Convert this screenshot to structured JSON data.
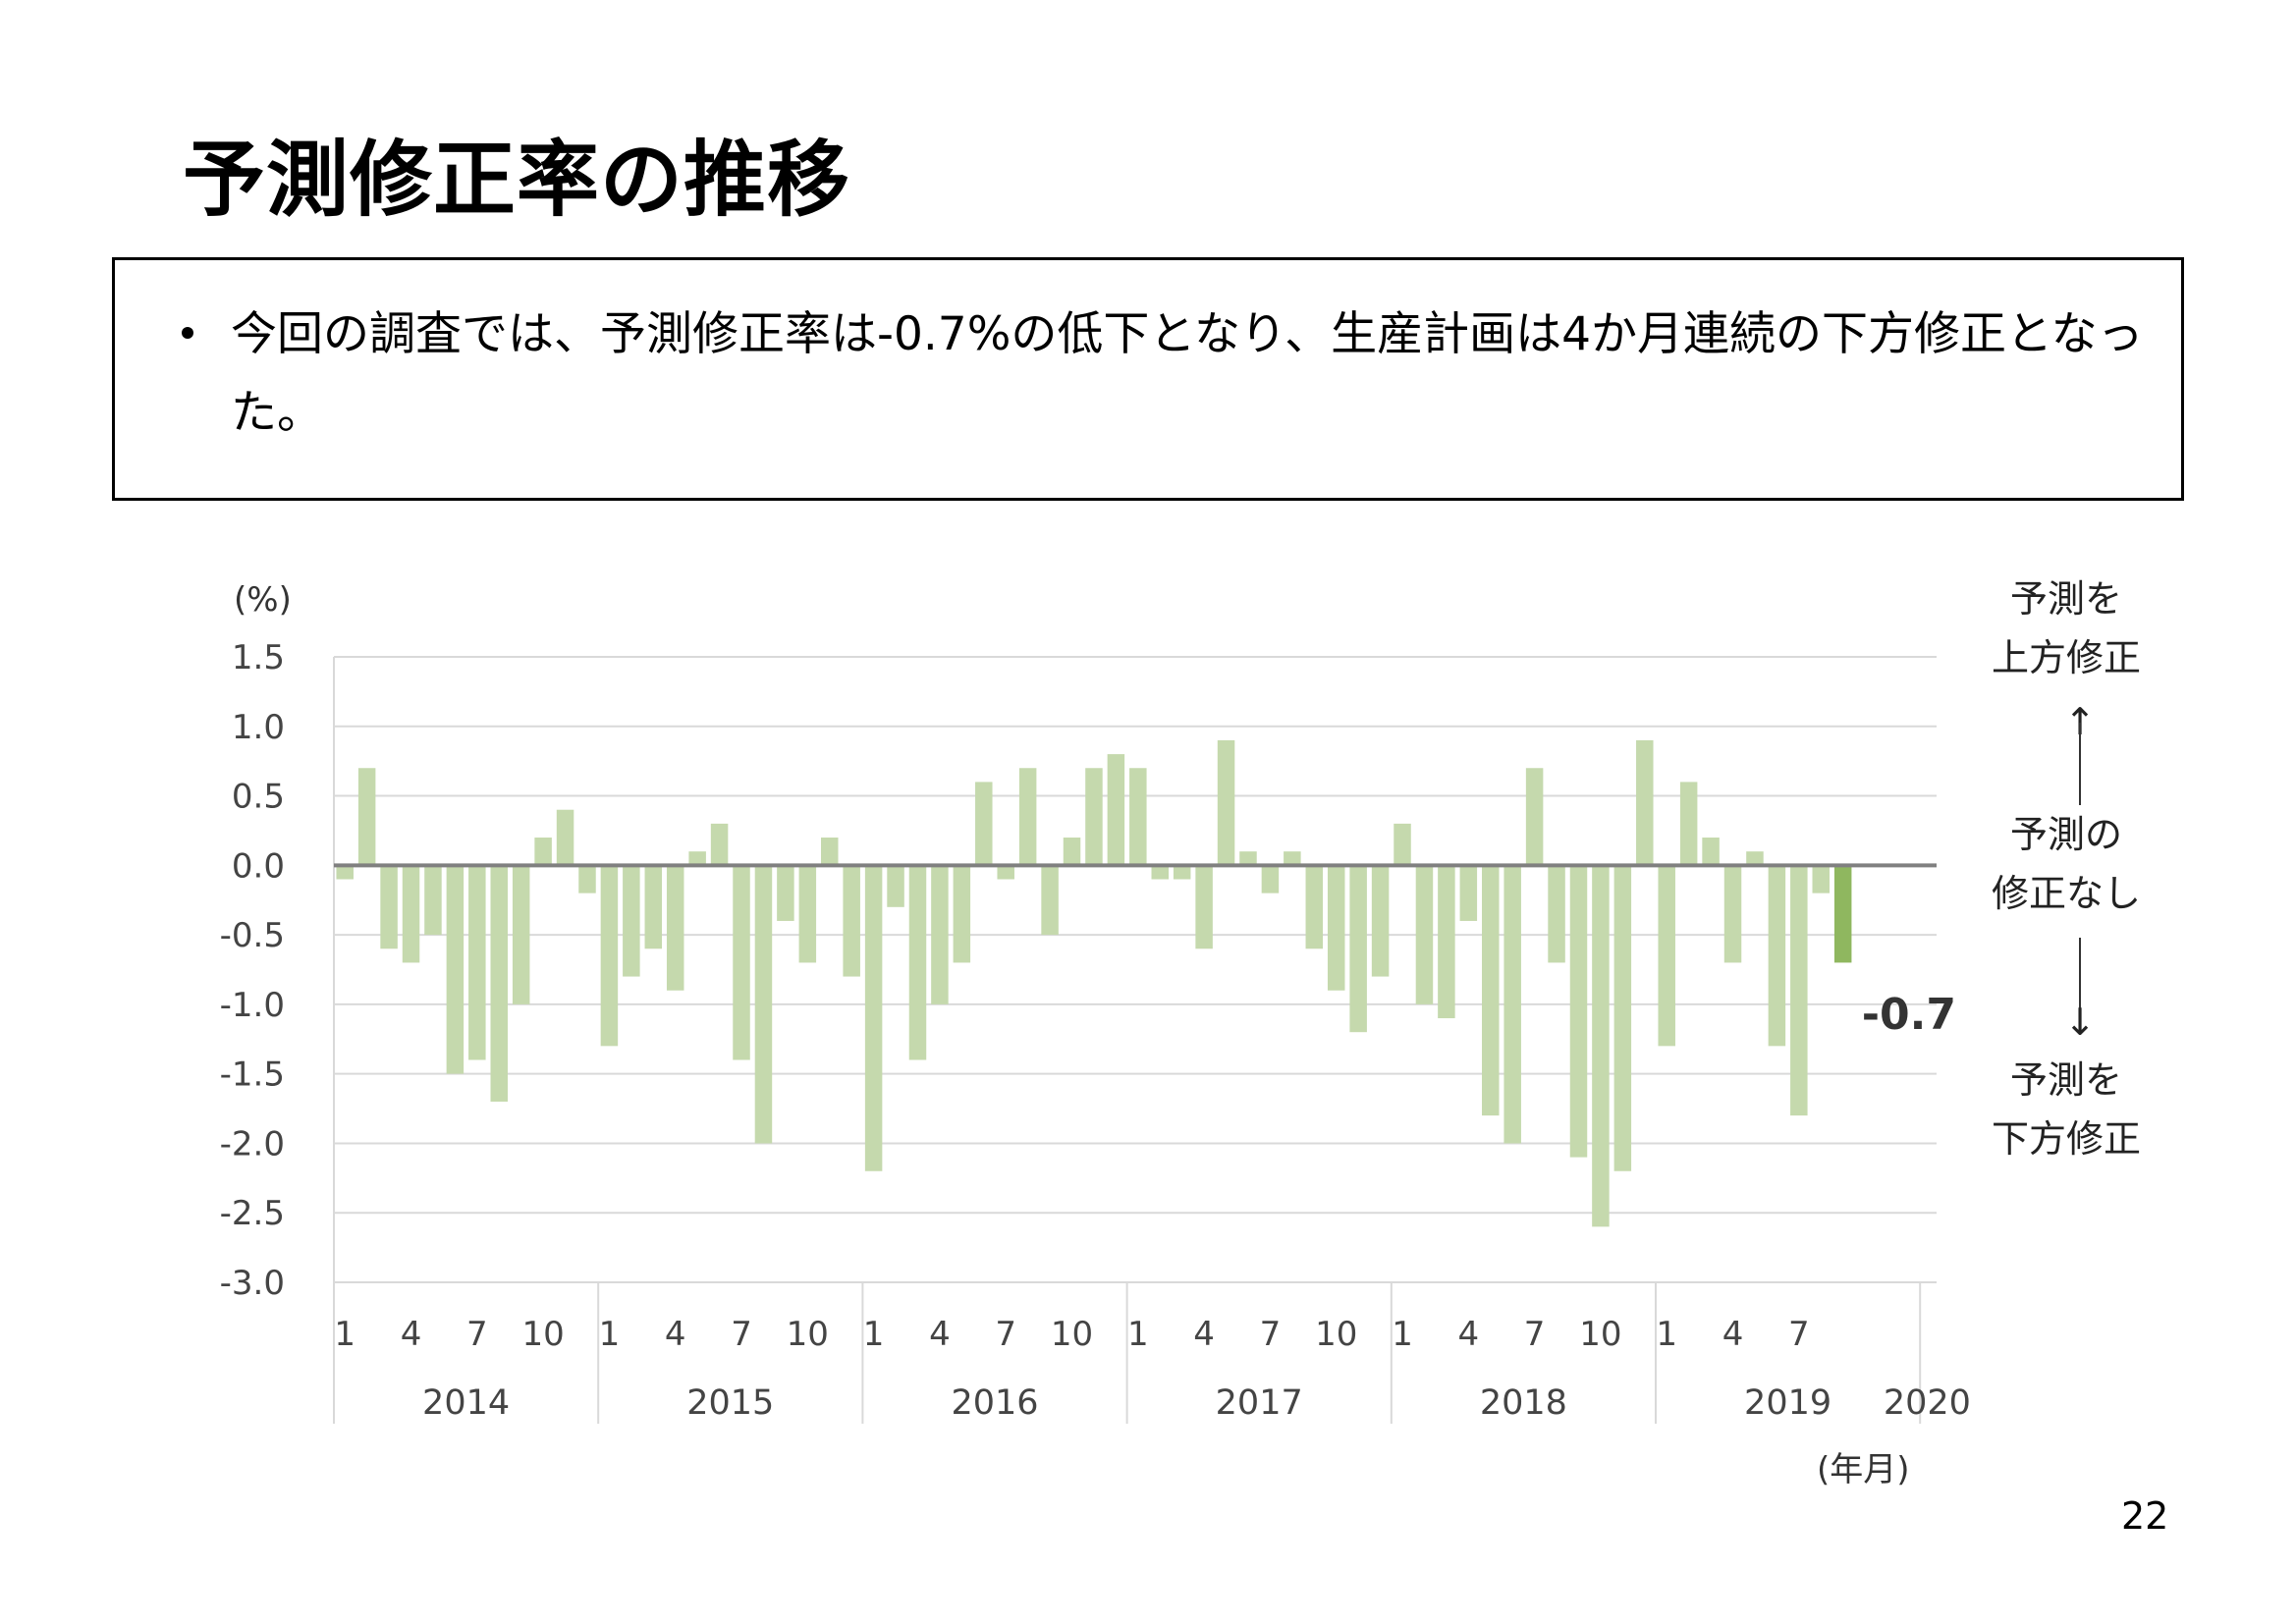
{
  "title": "予測修正率の推移",
  "summary": "今回の調査では、予測修正率は-0.7%の低下となり、生産計画は4か月連続の下方修正となった。",
  "page_number": "22",
  "colors": {
    "bar": "#c5d9ad",
    "latest_bar": "#8fb75f",
    "zero_line": "#808080",
    "grid": "#d9d9d9"
  },
  "chart_data": {
    "type": "bar",
    "y_unit": "(%)",
    "x_unit": "(年月)",
    "ylim": [
      -3.0,
      1.5
    ],
    "yticks": [
      "1.5",
      "1.0",
      "0.5",
      "0.0",
      "-0.5",
      "-1.0",
      "-1.5",
      "-2.0",
      "-2.5",
      "-3.0"
    ],
    "grid": true,
    "years": [
      "2014",
      "2015",
      "2016",
      "2017",
      "2018",
      "2019",
      "2020"
    ],
    "month_tick_labels": [
      "1",
      "4",
      "7",
      "10"
    ],
    "values": [
      -0.1,
      0.7,
      -0.6,
      -0.7,
      -0.5,
      -1.5,
      -1.4,
      -1.7,
      -1.0,
      0.2,
      0.4,
      -0.2,
      -1.3,
      -0.8,
      -0.6,
      -0.9,
      0.1,
      0.3,
      -1.4,
      -2.0,
      -0.4,
      -0.7,
      0.2,
      -0.8,
      -2.2,
      -0.3,
      -1.4,
      -1.0,
      -0.7,
      0.6,
      -0.1,
      0.7,
      -0.5,
      0.2,
      0.7,
      0.8,
      0.7,
      -0.1,
      -0.1,
      -0.6,
      0.9,
      0.1,
      -0.2,
      0.1,
      -0.6,
      -0.9,
      -1.2,
      -0.8,
      0.3,
      -1.0,
      -1.1,
      -0.4,
      -1.8,
      -2.0,
      0.7,
      -0.7,
      -2.1,
      -2.6,
      -2.2,
      0.9,
      -1.3,
      0.6,
      0.2,
      -0.7,
      0.1,
      -1.3,
      -1.8,
      -0.2,
      -0.7
    ],
    "latest_label": "-0.7",
    "annotations": {
      "upper": [
        "予測を",
        "上方修正"
      ],
      "middle": [
        "予測の",
        "修正なし"
      ],
      "lower": [
        "予測を",
        "下方修正"
      ],
      "arrow_up": "↑",
      "arrow_down": "↓"
    }
  }
}
